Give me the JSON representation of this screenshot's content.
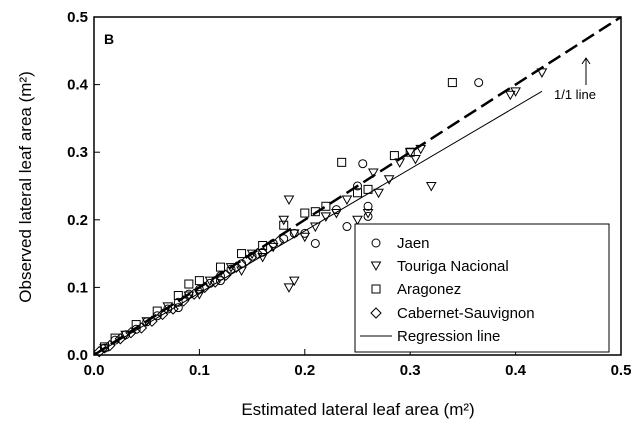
{
  "chart_data": {
    "type": "scatter",
    "panel_label": "B",
    "xlabel": "Estimated lateral leaf area (m²)",
    "ylabel": "Observed lateral leaf area (m²)",
    "xlim": [
      0,
      0.5
    ],
    "ylim": [
      0,
      0.5
    ],
    "x_ticks": [
      "0.0",
      "0.1",
      "0.2",
      "0.3",
      "0.4",
      "0.5"
    ],
    "y_ticks": [
      "0.0",
      "0.1",
      "0.2",
      "0.3",
      "0.4",
      "0.5"
    ],
    "grid": false,
    "legend_position": "bottom-right",
    "series": [
      {
        "name": "Jaen",
        "marker": "circle",
        "points": [
          [
            0.01,
            0.01
          ],
          [
            0.02,
            0.022
          ],
          [
            0.03,
            0.03
          ],
          [
            0.04,
            0.038
          ],
          [
            0.05,
            0.049
          ],
          [
            0.06,
            0.058
          ],
          [
            0.07,
            0.068
          ],
          [
            0.08,
            0.078
          ],
          [
            0.09,
            0.09
          ],
          [
            0.1,
            0.097
          ],
          [
            0.11,
            0.106
          ],
          [
            0.12,
            0.117
          ],
          [
            0.13,
            0.127
          ],
          [
            0.14,
            0.135
          ],
          [
            0.15,
            0.146
          ],
          [
            0.16,
            0.152
          ],
          [
            0.17,
            0.165
          ],
          [
            0.18,
            0.172
          ],
          [
            0.19,
            0.18
          ],
          [
            0.2,
            0.18
          ],
          [
            0.21,
            0.165
          ],
          [
            0.23,
            0.215
          ],
          [
            0.24,
            0.19
          ],
          [
            0.25,
            0.25
          ],
          [
            0.255,
            0.283
          ],
          [
            0.26,
            0.22
          ],
          [
            0.26,
            0.205
          ],
          [
            0.365,
            0.403
          ],
          [
            0.12,
            0.11
          ],
          [
            0.08,
            0.07
          ]
        ]
      },
      {
        "name": "Touriga Nacional",
        "marker": "triangle-down",
        "points": [
          [
            0.01,
            0.01
          ],
          [
            0.03,
            0.03
          ],
          [
            0.05,
            0.05
          ],
          [
            0.07,
            0.072
          ],
          [
            0.09,
            0.088
          ],
          [
            0.11,
            0.11
          ],
          [
            0.13,
            0.13
          ],
          [
            0.15,
            0.15
          ],
          [
            0.17,
            0.16
          ],
          [
            0.18,
            0.2
          ],
          [
            0.185,
            0.23
          ],
          [
            0.19,
            0.18
          ],
          [
            0.2,
            0.175
          ],
          [
            0.21,
            0.19
          ],
          [
            0.22,
            0.205
          ],
          [
            0.23,
            0.21
          ],
          [
            0.24,
            0.23
          ],
          [
            0.25,
            0.2
          ],
          [
            0.26,
            0.21
          ],
          [
            0.265,
            0.27
          ],
          [
            0.27,
            0.24
          ],
          [
            0.28,
            0.26
          ],
          [
            0.29,
            0.285
          ],
          [
            0.3,
            0.3
          ],
          [
            0.305,
            0.29
          ],
          [
            0.31,
            0.305
          ],
          [
            0.32,
            0.25
          ],
          [
            0.395,
            0.385
          ],
          [
            0.4,
            0.39
          ],
          [
            0.425,
            0.418
          ],
          [
            0.1,
            0.09
          ],
          [
            0.14,
            0.125
          ],
          [
            0.16,
            0.145
          ],
          [
            0.19,
            0.11
          ],
          [
            0.185,
            0.1
          ]
        ]
      },
      {
        "name": "Aragonez",
        "marker": "square",
        "points": [
          [
            0.01,
            0.012
          ],
          [
            0.02,
            0.025
          ],
          [
            0.04,
            0.045
          ],
          [
            0.06,
            0.065
          ],
          [
            0.08,
            0.088
          ],
          [
            0.1,
            0.11
          ],
          [
            0.12,
            0.13
          ],
          [
            0.14,
            0.15
          ],
          [
            0.16,
            0.162
          ],
          [
            0.18,
            0.192
          ],
          [
            0.2,
            0.21
          ],
          [
            0.21,
            0.212
          ],
          [
            0.22,
            0.22
          ],
          [
            0.235,
            0.285
          ],
          [
            0.25,
            0.24
          ],
          [
            0.26,
            0.245
          ],
          [
            0.285,
            0.295
          ],
          [
            0.3,
            0.3
          ],
          [
            0.34,
            0.403
          ],
          [
            0.09,
            0.105
          ]
        ]
      },
      {
        "name": "Cabernet-Sauvignon",
        "marker": "diamond",
        "points": [
          [
            0.005,
            0.005
          ],
          [
            0.015,
            0.014
          ],
          [
            0.025,
            0.024
          ],
          [
            0.035,
            0.033
          ],
          [
            0.045,
            0.04
          ],
          [
            0.055,
            0.05
          ],
          [
            0.065,
            0.06
          ],
          [
            0.075,
            0.068
          ],
          [
            0.085,
            0.08
          ],
          [
            0.095,
            0.09
          ],
          [
            0.105,
            0.1
          ],
          [
            0.115,
            0.108
          ],
          [
            0.125,
            0.118
          ],
          [
            0.135,
            0.13
          ],
          [
            0.145,
            0.14
          ],
          [
            0.155,
            0.15
          ],
          [
            0.165,
            0.158
          ],
          [
            0.175,
            0.168
          ]
        ]
      }
    ],
    "lines": [
      {
        "name": "Regression line",
        "style": "solid",
        "x": [
          0,
          0.425
        ],
        "y": [
          0,
          0.39
        ]
      },
      {
        "name": "1/1 line",
        "style": "dashed",
        "x": [
          0,
          0.5
        ],
        "y": [
          0,
          0.5
        ]
      }
    ],
    "annotations": [
      {
        "text": "1/1 line",
        "target": [
          0.47,
          0.47
        ]
      }
    ]
  }
}
